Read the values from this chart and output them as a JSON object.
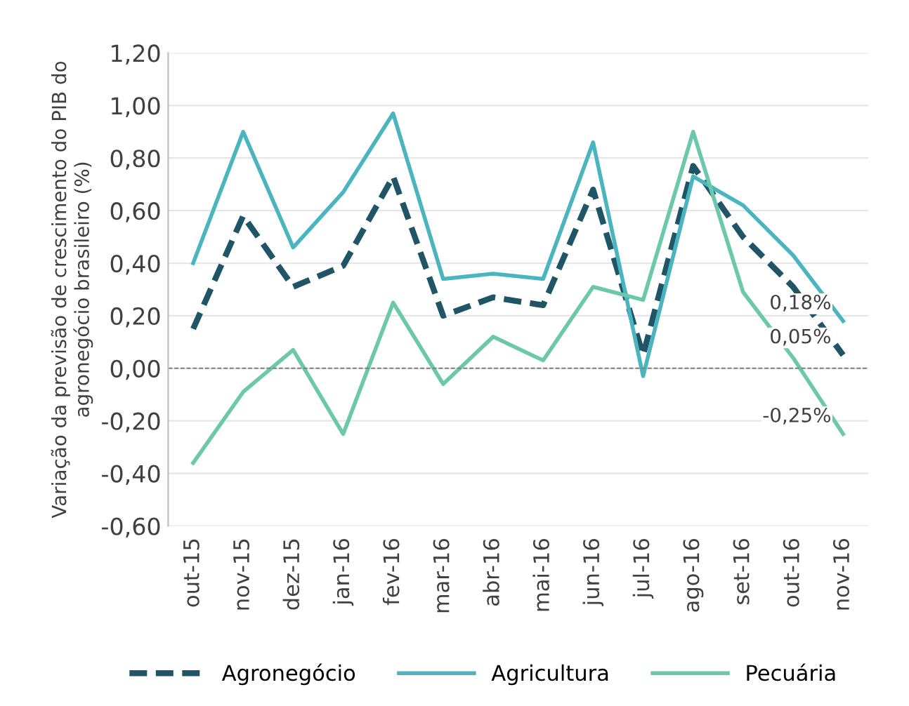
{
  "chart_data": {
    "type": "line",
    "ylabel": "Variação da previsão de crescimento do PIB do agronegócio brasileiro (%)",
    "categories": [
      "out-15",
      "nov-15",
      "dez-15",
      "jan-16",
      "fev-16",
      "mar-16",
      "abr-16",
      "mai-16",
      "jun-16",
      "jul-16",
      "ago-16",
      "set-16",
      "out-16",
      "nov-16"
    ],
    "series": [
      {
        "name": "Agronegócio",
        "color": "#1f5566",
        "line_style": "dashed",
        "values": [
          0.15,
          0.58,
          0.31,
          0.39,
          0.73,
          0.2,
          0.27,
          0.24,
          0.68,
          0.05,
          0.77,
          0.5,
          0.31,
          0.05
        ]
      },
      {
        "name": "Agricultura",
        "color": "#4bb5bf",
        "line_style": "solid",
        "values": [
          0.4,
          0.9,
          0.46,
          0.67,
          0.97,
          0.34,
          0.36,
          0.34,
          0.86,
          -0.03,
          0.73,
          0.62,
          0.43,
          0.18
        ]
      },
      {
        "name": "Pecuária",
        "color": "#6cc8aa",
        "line_style": "solid",
        "values": [
          -0.36,
          -0.09,
          0.07,
          -0.25,
          0.25,
          -0.06,
          0.12,
          0.03,
          0.31,
          0.26,
          0.9,
          0.29,
          0.04,
          -0.25
        ]
      }
    ],
    "ylim": [
      -0.6,
      1.2
    ],
    "yticks": [
      {
        "value": -0.6,
        "label": "-0,60"
      },
      {
        "value": -0.4,
        "label": "-0,40"
      },
      {
        "value": -0.2,
        "label": "-0,20"
      },
      {
        "value": 0,
        "label": "0,00"
      },
      {
        "value": 0.2,
        "label": "0,20"
      },
      {
        "value": 0.4,
        "label": "0,40"
      },
      {
        "value": 0.6,
        "label": "0,60"
      },
      {
        "value": 0.8,
        "label": "0,80"
      },
      {
        "value": 1.0,
        "label": "1,00"
      },
      {
        "value": 1.2,
        "label": "1,20"
      }
    ],
    "grid": "y",
    "ref_lines": [
      {
        "axis": "y",
        "value": 0,
        "color": "#808080",
        "line_style": "dashed"
      }
    ],
    "annotations": [
      {
        "text": "0,18%",
        "x": "nov-16",
        "y": 0.18
      },
      {
        "text": "0,05%",
        "x": "nov-16",
        "y": 0.05
      },
      {
        "text": "-0,25%",
        "x": "nov-16",
        "y": -0.25
      }
    ],
    "legend": "bottom",
    "marker": "none"
  }
}
